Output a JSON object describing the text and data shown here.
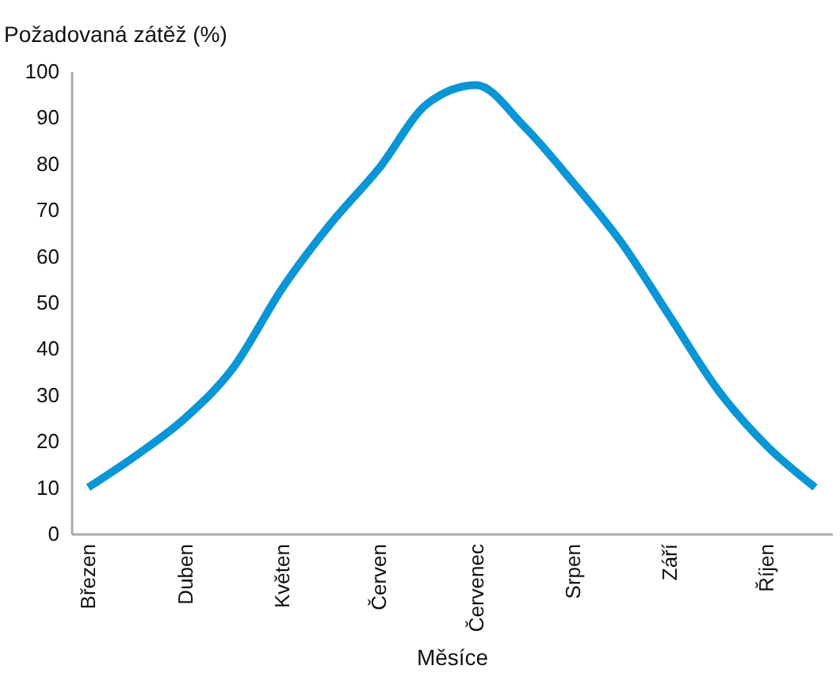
{
  "chart_data": {
    "type": "line",
    "ylabel": "Požadovaná zátěž (%)",
    "xlabel": "Měsíce",
    "categories": [
      "Březen",
      null,
      "Duben",
      null,
      "Květen",
      null,
      "Červen",
      null,
      "Červenec",
      null,
      "Srpen",
      null,
      "Září",
      null,
      "Říjen",
      null
    ],
    "series": [
      {
        "color": "#0a96d6",
        "values": [
          10,
          17,
          25,
          36,
          53,
          67,
          79,
          93,
          97,
          88,
          76,
          63,
          47,
          31,
          19,
          10
        ]
      }
    ],
    "ylim": [
      0,
      100
    ],
    "yticks": [
      0,
      10,
      20,
      30,
      40,
      50,
      60,
      70,
      80,
      90,
      100
    ],
    "marker": "none",
    "line_style": "solid"
  }
}
